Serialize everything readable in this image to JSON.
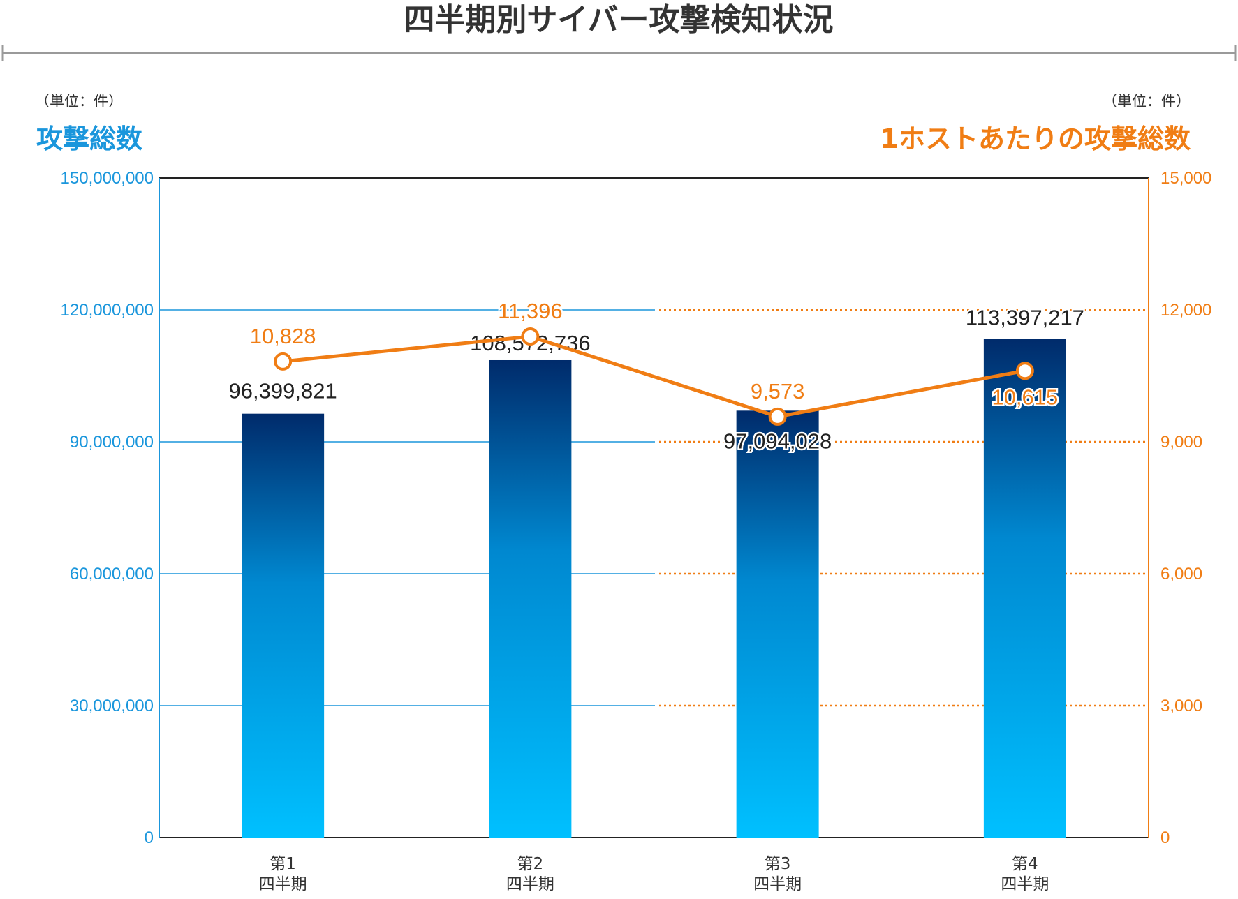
{
  "colors": {
    "left_axis": "#1a96dc",
    "right_axis": "#f07d14",
    "bar_top": "#002b6b",
    "bar_mid": "#0088d0",
    "bar_bottom": "#00c0ff",
    "text": "#333333"
  },
  "chart_data": {
    "type": "bar",
    "title": "四半期別サイバー攻撃検知状況",
    "categories": [
      {
        "line1": "第1",
        "line2": "四半期"
      },
      {
        "line1": "第2",
        "line2": "四半期"
      },
      {
        "line1": "第3",
        "line2": "四半期"
      },
      {
        "line1": "第4",
        "line2": "四半期"
      }
    ],
    "left_axis": {
      "title": "攻撃総数",
      "unit": "（単位：件）",
      "ylim": [
        0,
        150000000
      ],
      "ticks": [
        0,
        30000000,
        60000000,
        90000000,
        120000000,
        150000000
      ],
      "tick_labels": [
        "0",
        "30,000,000",
        "60,000,000",
        "90,000,000",
        "120,000,000",
        "150,000,000"
      ]
    },
    "right_axis": {
      "title": "1ホストあたりの攻撃総数",
      "unit": "（単位：件）",
      "ylim": [
        0,
        15000
      ],
      "ticks": [
        0,
        3000,
        6000,
        9000,
        12000,
        15000
      ],
      "tick_labels": [
        "0",
        "3,000",
        "6,000",
        "9,000",
        "12,000",
        "15,000"
      ]
    },
    "series": [
      {
        "name": "攻撃総数",
        "type": "bar",
        "axis": "left",
        "values": [
          96399821,
          108572736,
          97094028,
          113397217
        ],
        "labels": [
          "96,399,821",
          "108,572,736",
          "97,094,028",
          "113,397,217"
        ]
      },
      {
        "name": "1ホストあたりの攻撃総数",
        "type": "line",
        "axis": "right",
        "values": [
          10828,
          11396,
          9573,
          10615
        ],
        "labels": [
          "10,828",
          "11,396",
          "9,573",
          "10,615"
        ]
      }
    ]
  }
}
